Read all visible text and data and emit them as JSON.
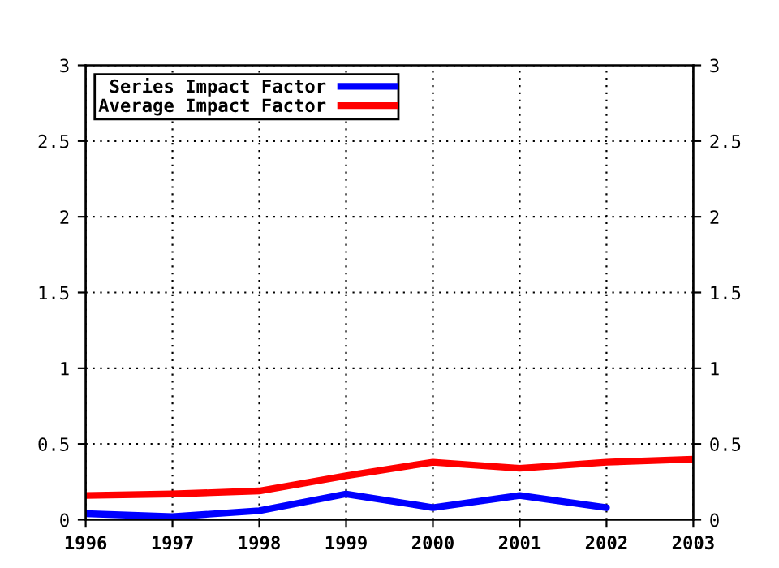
{
  "chart_data": {
    "type": "line",
    "x": [
      1996,
      1997,
      1998,
      1999,
      2000,
      2001,
      2002,
      2003
    ],
    "series": [
      {
        "name": "Series Impact Factor",
        "color": "#0000ff",
        "values": [
          0.04,
          0.02,
          0.06,
          0.17,
          0.08,
          0.16,
          0.08,
          null
        ]
      },
      {
        "name": "Average Impact Factor",
        "color": "#ff0000",
        "values": [
          0.16,
          0.17,
          0.19,
          0.29,
          0.38,
          0.34,
          0.38,
          0.4
        ]
      }
    ],
    "xlim": [
      1996,
      2003
    ],
    "xticks": [
      1996,
      1997,
      1998,
      1999,
      2000,
      2001,
      2002,
      2003
    ],
    "ylim": [
      0,
      3
    ],
    "yticks": [
      0,
      0.5,
      1,
      1.5,
      2,
      2.5,
      3
    ],
    "y2lim": [
      0,
      3
    ],
    "y2ticks": [
      0,
      0.5,
      1,
      1.5,
      2,
      2.5,
      3
    ],
    "grid": true,
    "legend": "top left",
    "marker": "none",
    "line_style": "solid"
  }
}
